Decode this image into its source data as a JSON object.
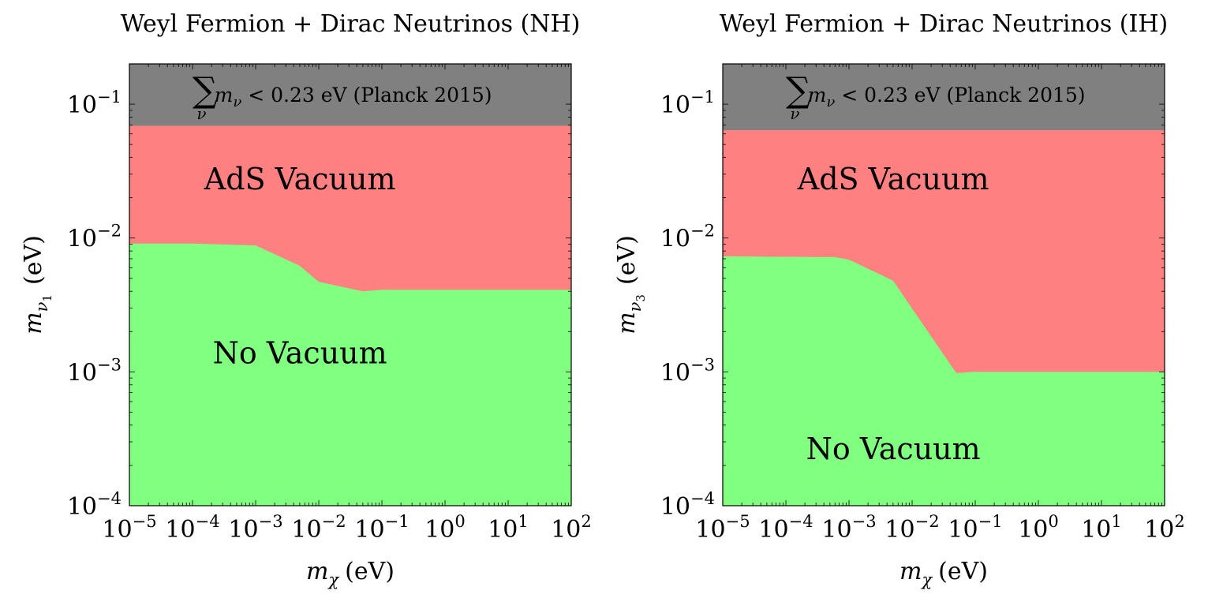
{
  "chart_data": [
    {
      "type": "area",
      "title": "Weyl Fermion + Dirac Neutrinos (NH)",
      "xlabel_symbol": "m",
      "xlabel_sub": "χ",
      "xlabel_unit": "(eV)",
      "ylabel_symbol": "m",
      "ylabel_sub": "ν",
      "ylabel_subsub": "1",
      "ylabel_unit": "(eV)",
      "xscale": "log",
      "yscale": "log",
      "xlim": [
        1e-05,
        100
      ],
      "ylim": [
        0.0001,
        0.2
      ],
      "x_ticks": [
        {
          "base": "10",
          "exp": "−5"
        },
        {
          "base": "10",
          "exp": "−4"
        },
        {
          "base": "10",
          "exp": "−3"
        },
        {
          "base": "10",
          "exp": "−2"
        },
        {
          "base": "10",
          "exp": "−1"
        },
        {
          "base": "10",
          "exp": "0"
        },
        {
          "base": "10",
          "exp": "1"
        },
        {
          "base": "10",
          "exp": "2"
        }
      ],
      "y_ticks": [
        {
          "base": "10",
          "exp": "−4"
        },
        {
          "base": "10",
          "exp": "−3"
        },
        {
          "base": "10",
          "exp": "−2"
        },
        {
          "base": "10",
          "exp": "−1"
        }
      ],
      "planck_limit": 0.069,
      "planck_text": {
        "sum": "∑",
        "sub": "ν",
        "m": "m",
        "msub": "ν",
        "rest": " < 0.23 eV (Planck 2015)"
      },
      "boundary": {
        "x": [
          1e-05,
          0.0001,
          0.001,
          0.005,
          0.01,
          0.05,
          0.1,
          100
        ],
        "y": [
          0.0091,
          0.0091,
          0.0088,
          0.0062,
          0.0047,
          0.004,
          0.0041,
          0.0041
        ]
      },
      "regions": [
        {
          "name": "AdS Vacuum",
          "color": "#ff8080",
          "label_at": [
            0.004,
            0.028
          ]
        },
        {
          "name": "No Vacuum",
          "color": "#80ff80",
          "label_at": [
            0.004,
            0.0014
          ]
        },
        {
          "name": "Planck excluded",
          "color": "#808080"
        }
      ]
    },
    {
      "type": "area",
      "title": "Weyl Fermion + Dirac Neutrinos (IH)",
      "xlabel_symbol": "m",
      "xlabel_sub": "χ",
      "xlabel_unit": "(eV)",
      "ylabel_symbol": "m",
      "ylabel_sub": "ν",
      "ylabel_subsub": "3",
      "ylabel_unit": "(eV)",
      "xscale": "log",
      "yscale": "log",
      "xlim": [
        1e-05,
        100
      ],
      "ylim": [
        0.0001,
        0.2
      ],
      "x_ticks": [
        {
          "base": "10",
          "exp": "−5"
        },
        {
          "base": "10",
          "exp": "−4"
        },
        {
          "base": "10",
          "exp": "−3"
        },
        {
          "base": "10",
          "exp": "−2"
        },
        {
          "base": "10",
          "exp": "−1"
        },
        {
          "base": "10",
          "exp": "0"
        },
        {
          "base": "10",
          "exp": "1"
        },
        {
          "base": "10",
          "exp": "2"
        }
      ],
      "y_ticks": [
        {
          "base": "10",
          "exp": "−4"
        },
        {
          "base": "10",
          "exp": "−3"
        },
        {
          "base": "10",
          "exp": "−2"
        },
        {
          "base": "10",
          "exp": "−1"
        }
      ],
      "planck_limit": 0.064,
      "planck_text": {
        "sum": "∑",
        "sub": "ν",
        "m": "m",
        "msub": "ν",
        "rest": " < 0.23 eV (Planck 2015)"
      },
      "boundary": {
        "x": [
          1e-05,
          0.0006,
          0.001,
          0.005,
          0.05,
          0.1,
          100
        ],
        "y": [
          0.0073,
          0.0072,
          0.0069,
          0.0048,
          0.00098,
          0.001,
          0.001
        ]
      },
      "regions": [
        {
          "name": "AdS Vacuum",
          "color": "#ff8080",
          "label_at": [
            0.004,
            0.028
          ]
        },
        {
          "name": "No Vacuum",
          "color": "#80ff80",
          "label_at": [
            0.004,
            0.00027
          ]
        },
        {
          "name": "Planck excluded",
          "color": "#808080"
        }
      ]
    }
  ]
}
